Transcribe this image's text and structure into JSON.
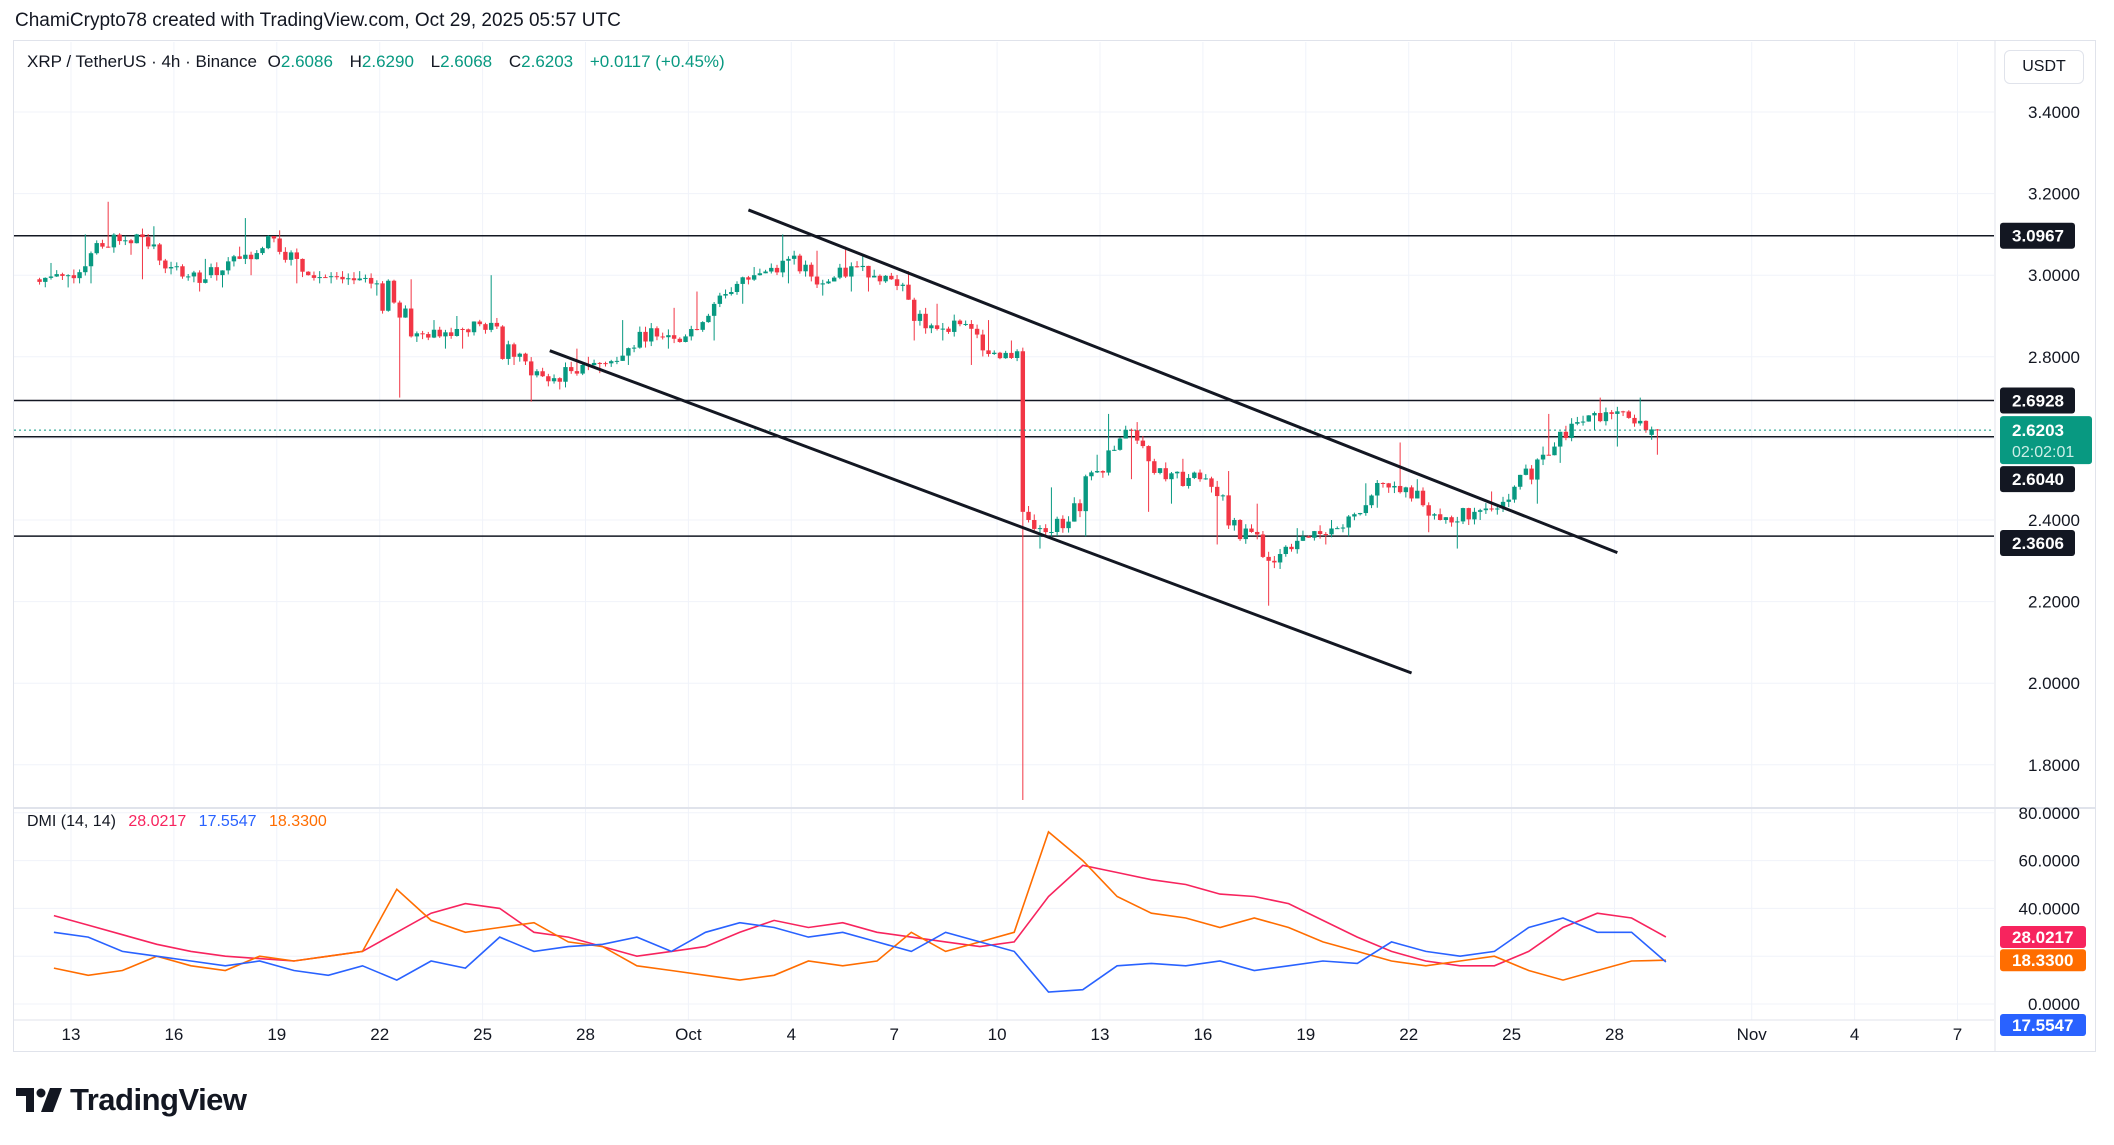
{
  "caption": "ChamiCrypto78 created with TradingView.com, Oct 29, 2025 05:57 UTC",
  "legend": {
    "symbol": "XRP / TetherUS · 4h · Binance",
    "o_label": "O",
    "o": "2.6086",
    "h_label": "H",
    "h": "2.6290",
    "l_label": "L",
    "l": "2.6068",
    "c_label": "C",
    "c": "2.6203",
    "change": "+0.0117 (+0.45%)"
  },
  "currency_button": "USDT",
  "indicator": {
    "name": "DMI (14, 14)",
    "adx": "28.0217",
    "plus_di": "17.5547",
    "minus_di": "18.3300"
  },
  "last_price": {
    "value": "2.6203",
    "countdown": "02:02:01"
  },
  "colors": {
    "up": "#089981",
    "down": "#f23645",
    "adx": "#f7245e",
    "plus_di": "#2962ff",
    "minus_di": "#ff6d00",
    "level_label_bg": "#131722",
    "last_price_bg": "#089981"
  },
  "logo_text": "TradingView",
  "chart_data": {
    "type": "candlestick",
    "interval": "4h",
    "price_axis": {
      "ticks": [
        "3.4000",
        "3.2000",
        "3.0000",
        "2.8000",
        "2.4000",
        "2.2000",
        "2.0000",
        "1.8000"
      ],
      "range": [
        1.71,
        3.49
      ]
    },
    "dmi_axis": {
      "ticks": [
        "80.0000",
        "60.0000",
        "40.0000",
        "0.0000"
      ],
      "range": [
        0,
        82
      ]
    },
    "x_ticks": [
      {
        "label": "13",
        "date": "2025-09-13"
      },
      {
        "label": "16",
        "date": "2025-09-16"
      },
      {
        "label": "19",
        "date": "2025-09-19"
      },
      {
        "label": "22",
        "date": "2025-09-22"
      },
      {
        "label": "25",
        "date": "2025-09-25"
      },
      {
        "label": "28",
        "date": "2025-09-28"
      },
      {
        "label": "Oct",
        "date": "2025-10-01"
      },
      {
        "label": "4",
        "date": "2025-10-04"
      },
      {
        "label": "7",
        "date": "2025-10-07"
      },
      {
        "label": "10",
        "date": "2025-10-10"
      },
      {
        "label": "13",
        "date": "2025-10-13"
      },
      {
        "label": "16",
        "date": "2025-10-16"
      },
      {
        "label": "19",
        "date": "2025-10-19"
      },
      {
        "label": "22",
        "date": "2025-10-22"
      },
      {
        "label": "25",
        "date": "2025-10-25"
      },
      {
        "label": "28",
        "date": "2025-10-28"
      },
      {
        "label": "Nov",
        "date": "2025-11-01"
      },
      {
        "label": "4",
        "date": "2025-11-04"
      },
      {
        "label": "7",
        "date": "2025-11-07"
      }
    ],
    "daily_ohlc": [
      [
        "2025-09-12",
        2.99,
        3.03,
        2.97,
        3.0
      ],
      [
        "2025-09-13",
        3.0,
        3.1,
        2.98,
        3.07
      ],
      [
        "2025-09-14",
        3.07,
        3.18,
        3.05,
        3.1
      ],
      [
        "2025-09-15",
        3.1,
        3.12,
        2.99,
        3.02
      ],
      [
        "2025-09-16",
        3.02,
        3.04,
        2.96,
        2.99
      ],
      [
        "2025-09-17",
        3.0,
        3.07,
        2.97,
        3.04
      ],
      [
        "2025-09-18",
        3.04,
        3.14,
        3.0,
        3.09
      ],
      [
        "2025-09-19",
        3.09,
        3.11,
        2.98,
        3.0
      ],
      [
        "2025-09-20",
        3.0,
        3.01,
        2.98,
        2.99
      ],
      [
        "2025-09-21",
        2.99,
        3.01,
        2.95,
        2.98
      ],
      [
        "2025-09-22",
        2.98,
        2.99,
        2.7,
        2.85
      ],
      [
        "2025-09-23",
        2.85,
        2.89,
        2.82,
        2.86
      ],
      [
        "2025-09-24",
        2.86,
        2.9,
        2.82,
        2.88
      ],
      [
        "2025-09-25",
        2.88,
        3.0,
        2.78,
        2.8
      ],
      [
        "2025-09-26",
        2.8,
        2.81,
        2.69,
        2.74
      ],
      [
        "2025-09-27",
        2.74,
        2.82,
        2.72,
        2.78
      ],
      [
        "2025-09-28",
        2.78,
        2.8,
        2.76,
        2.79
      ],
      [
        "2025-09-29",
        2.79,
        2.89,
        2.78,
        2.87
      ],
      [
        "2025-09-30",
        2.87,
        2.92,
        2.82,
        2.85
      ],
      [
        "2025-10-01",
        2.85,
        2.96,
        2.84,
        2.95
      ],
      [
        "2025-10-02",
        2.95,
        3.02,
        2.93,
        3.0
      ],
      [
        "2025-10-03",
        3.0,
        3.1,
        2.98,
        3.04
      ],
      [
        "2025-10-04",
        3.04,
        3.06,
        2.95,
        2.98
      ],
      [
        "2025-10-05",
        2.98,
        3.07,
        2.96,
        3.02
      ],
      [
        "2025-10-06",
        3.02,
        3.05,
        2.96,
        2.99
      ],
      [
        "2025-10-07",
        2.99,
        3.01,
        2.84,
        2.87
      ],
      [
        "2025-10-08",
        2.87,
        2.93,
        2.84,
        2.88
      ],
      [
        "2025-10-09",
        2.88,
        2.89,
        2.78,
        2.81
      ],
      [
        "2025-10-10",
        2.81,
        2.84,
        1.71,
        2.4
      ],
      [
        "2025-10-11",
        2.4,
        2.48,
        2.33,
        2.38
      ],
      [
        "2025-10-12",
        2.38,
        2.56,
        2.36,
        2.52
      ],
      [
        "2025-10-13",
        2.52,
        2.66,
        2.5,
        2.62
      ],
      [
        "2025-10-14",
        2.62,
        2.64,
        2.42,
        2.5
      ],
      [
        "2025-10-15",
        2.5,
        2.55,
        2.44,
        2.5
      ],
      [
        "2025-10-16",
        2.5,
        2.52,
        2.34,
        2.4
      ],
      [
        "2025-10-17",
        2.4,
        2.44,
        2.19,
        2.3
      ],
      [
        "2025-10-18",
        2.3,
        2.38,
        2.28,
        2.36
      ],
      [
        "2025-10-19",
        2.36,
        2.4,
        2.34,
        2.38
      ],
      [
        "2025-10-20",
        2.38,
        2.49,
        2.36,
        2.46
      ],
      [
        "2025-10-21",
        2.46,
        2.59,
        2.43,
        2.48
      ],
      [
        "2025-10-22",
        2.48,
        2.5,
        2.37,
        2.4
      ],
      [
        "2025-10-23",
        2.4,
        2.43,
        2.33,
        2.42
      ],
      [
        "2025-10-24",
        2.42,
        2.47,
        2.4,
        2.45
      ],
      [
        "2025-10-25",
        2.45,
        2.58,
        2.44,
        2.56
      ],
      [
        "2025-10-26",
        2.56,
        2.66,
        2.54,
        2.64
      ],
      [
        "2025-10-27",
        2.64,
        2.7,
        2.62,
        2.66
      ],
      [
        "2025-10-28",
        2.66,
        2.7,
        2.58,
        2.62
      ],
      [
        "2025-10-29",
        2.6086,
        2.629,
        2.56,
        2.6203
      ]
    ],
    "horizontal_levels": [
      "3.0967",
      "2.6928",
      "2.6040",
      "2.3606"
    ],
    "trendlines": [
      {
        "from": [
          "2025-10-02T18:00:00Z",
          3.16
        ],
        "to": [
          "2025-10-28T02:00:00Z",
          2.32
        ]
      },
      {
        "from": [
          "2025-09-26T23:00:00Z",
          2.815
        ],
        "to": [
          "2025-10-22T02:00:00Z",
          2.025
        ]
      }
    ],
    "dmi_series": {
      "adx": [
        37,
        33,
        29,
        25,
        22,
        20,
        19,
        18,
        20,
        22,
        30,
        38,
        42,
        40,
        30,
        28,
        24,
        20,
        22,
        24,
        30,
        35,
        32,
        34,
        30,
        28,
        26,
        24,
        26,
        45,
        58,
        55,
        52,
        50,
        46,
        45,
        42,
        35,
        28,
        22,
        18,
        16,
        16,
        22,
        32,
        38,
        36,
        28.0217
      ],
      "plus_di": [
        30,
        28,
        22,
        20,
        18,
        16,
        18,
        14,
        12,
        16,
        10,
        18,
        15,
        28,
        22,
        24,
        25,
        28,
        22,
        30,
        34,
        32,
        28,
        30,
        26,
        22,
        30,
        26,
        22,
        5,
        6,
        16,
        17,
        16,
        18,
        14,
        16,
        18,
        17,
        26,
        22,
        20,
        22,
        32,
        36,
        30,
        30,
        17.5547
      ],
      "minus_di": [
        15,
        12,
        14,
        20,
        16,
        14,
        20,
        18,
        20,
        22,
        48,
        35,
        30,
        32,
        34,
        26,
        24,
        16,
        14,
        12,
        10,
        12,
        18,
        16,
        18,
        30,
        22,
        26,
        30,
        72,
        60,
        45,
        38,
        36,
        32,
        36,
        32,
        26,
        22,
        18,
        16,
        18,
        20,
        14,
        10,
        14,
        18,
        18.33
      ]
    }
  }
}
